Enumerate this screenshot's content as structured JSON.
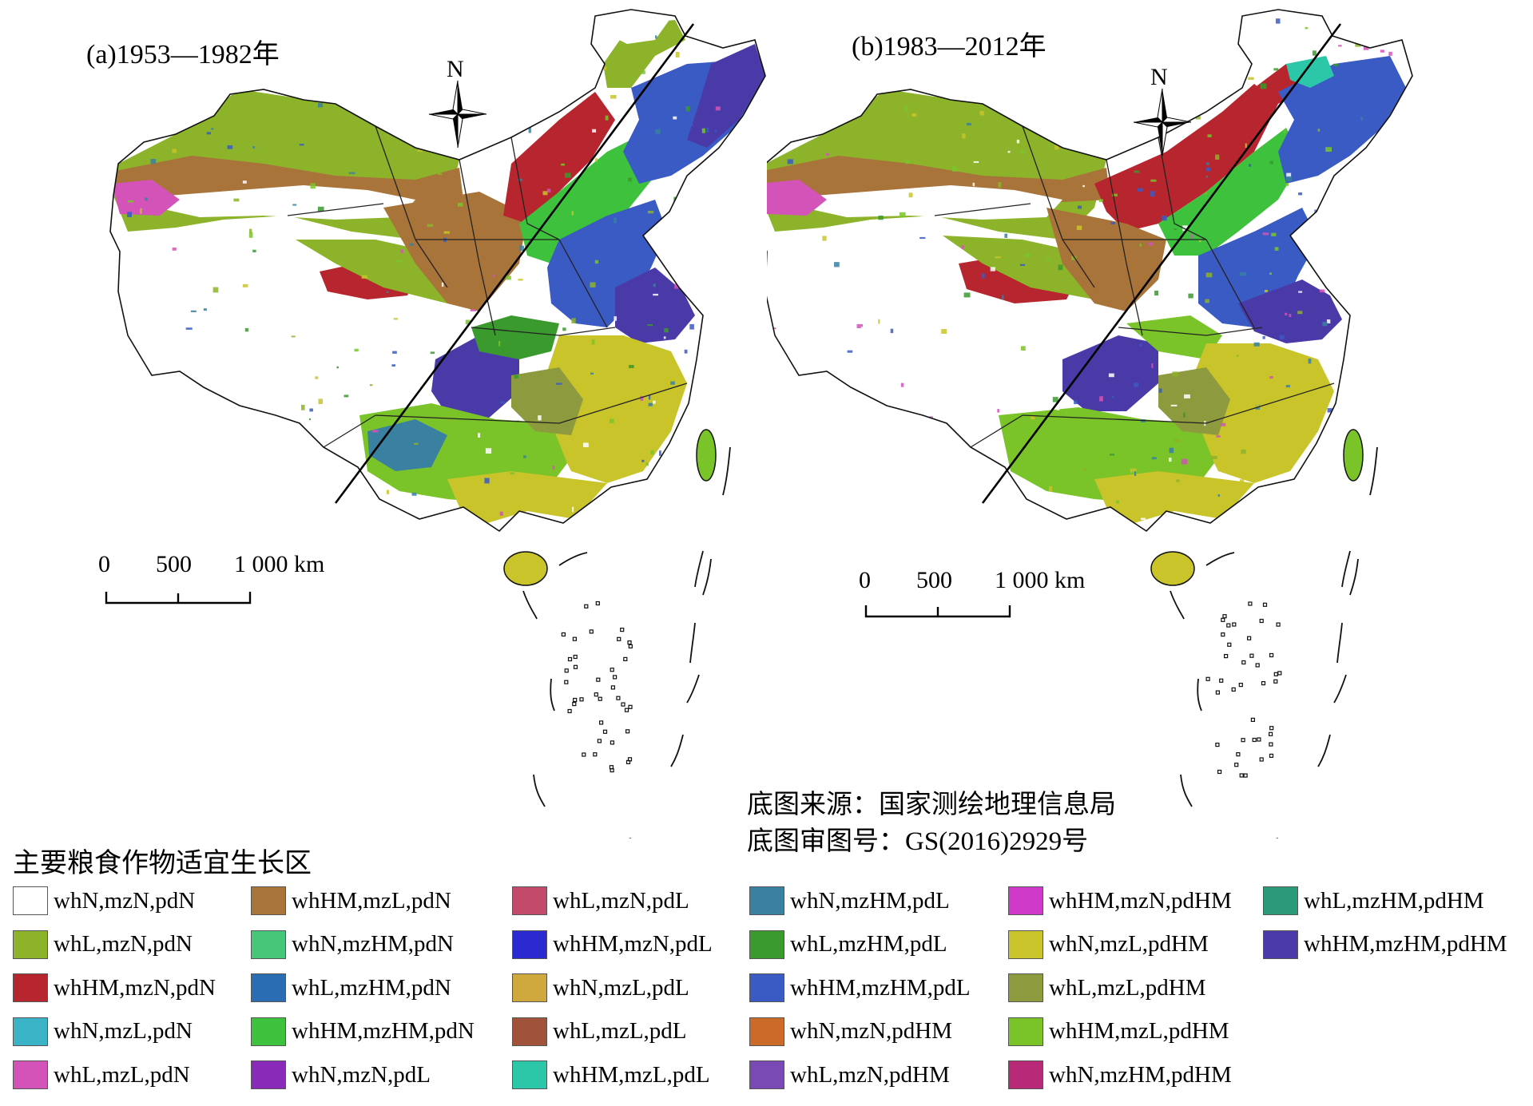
{
  "panels": [
    {
      "id": "a",
      "title": "(a)1953—1982年",
      "north": "N",
      "scale": {
        "ticks": [
          "0",
          "500",
          "1 000 km"
        ]
      }
    },
    {
      "id": "b",
      "title": "(b)1983—2012年",
      "north": "N",
      "scale": {
        "ticks": [
          "0",
          "500",
          "1 000 km"
        ]
      }
    }
  ],
  "source_note": {
    "line1": "底图来源：国家测绘地理信息局",
    "line2": "底图审图号：GS(2016)2929号"
  },
  "legend": {
    "title": "主要粮食作物适宜生长区",
    "columns": [
      [
        {
          "label": "whN,mzN,pdN",
          "color": "#ffffff"
        },
        {
          "label": "whL,mzN,pdN",
          "color": "#8db32a"
        },
        {
          "label": "whHM,mzN,pdN",
          "color": "#b7262e"
        },
        {
          "label": "whN,mzL,pdN",
          "color": "#3bb3c7"
        },
        {
          "label": "whL,mzL,pdN",
          "color": "#d453b8"
        }
      ],
      [
        {
          "label": "whHM,mzL,pdN",
          "color": "#a8743a"
        },
        {
          "label": "whN,mzHM,pdN",
          "color": "#45c678"
        },
        {
          "label": "whL,mzHM,pdN",
          "color": "#2b6db3"
        },
        {
          "label": "whHM,mzHM,pdN",
          "color": "#3ec23e"
        },
        {
          "label": "whN,mzN,pdL",
          "color": "#8a2ab8"
        }
      ],
      [
        {
          "label": "whL,mzN,pdL",
          "color": "#c24a6a"
        },
        {
          "label": "whHM,mzN,pdL",
          "color": "#2a2ad0"
        },
        {
          "label": "whN,mzL,pdL",
          "color": "#cfa83e"
        },
        {
          "label": "whL,mzL,pdL",
          "color": "#a0523a"
        },
        {
          "label": "whHM,mzL,pdL",
          "color": "#2cc7a8"
        }
      ],
      [
        {
          "label": "whN,mzHM,pdL",
          "color": "#3a80a0"
        },
        {
          "label": "whL,mzHM,pdL",
          "color": "#3a9a2e"
        },
        {
          "label": "whHM,mzHM,pdL",
          "color": "#3a5ac4"
        },
        {
          "label": "whN,mzN,pdHM",
          "color": "#cc6a2a"
        },
        {
          "label": "whL,mzN,pdHM",
          "color": "#7a4ab4"
        }
      ],
      [
        {
          "label": "whHM,mzN,pdHM",
          "color": "#d03ac8"
        },
        {
          "label": "whN,mzL,pdHM",
          "color": "#c8c42a"
        },
        {
          "label": "whL,mzL,pdHM",
          "color": "#8e9a3e"
        },
        {
          "label": "whHM,mzL,pdHM",
          "color": "#7ac42a"
        },
        {
          "label": "whN,mzHM,pdHM",
          "color": "#b82a78"
        }
      ],
      [
        {
          "label": "whL,mzHM,pdHM",
          "color": "#2a9a7a"
        },
        {
          "label": "whHM,mzHM,pdHM",
          "color": "#4a3aa8"
        }
      ]
    ]
  }
}
